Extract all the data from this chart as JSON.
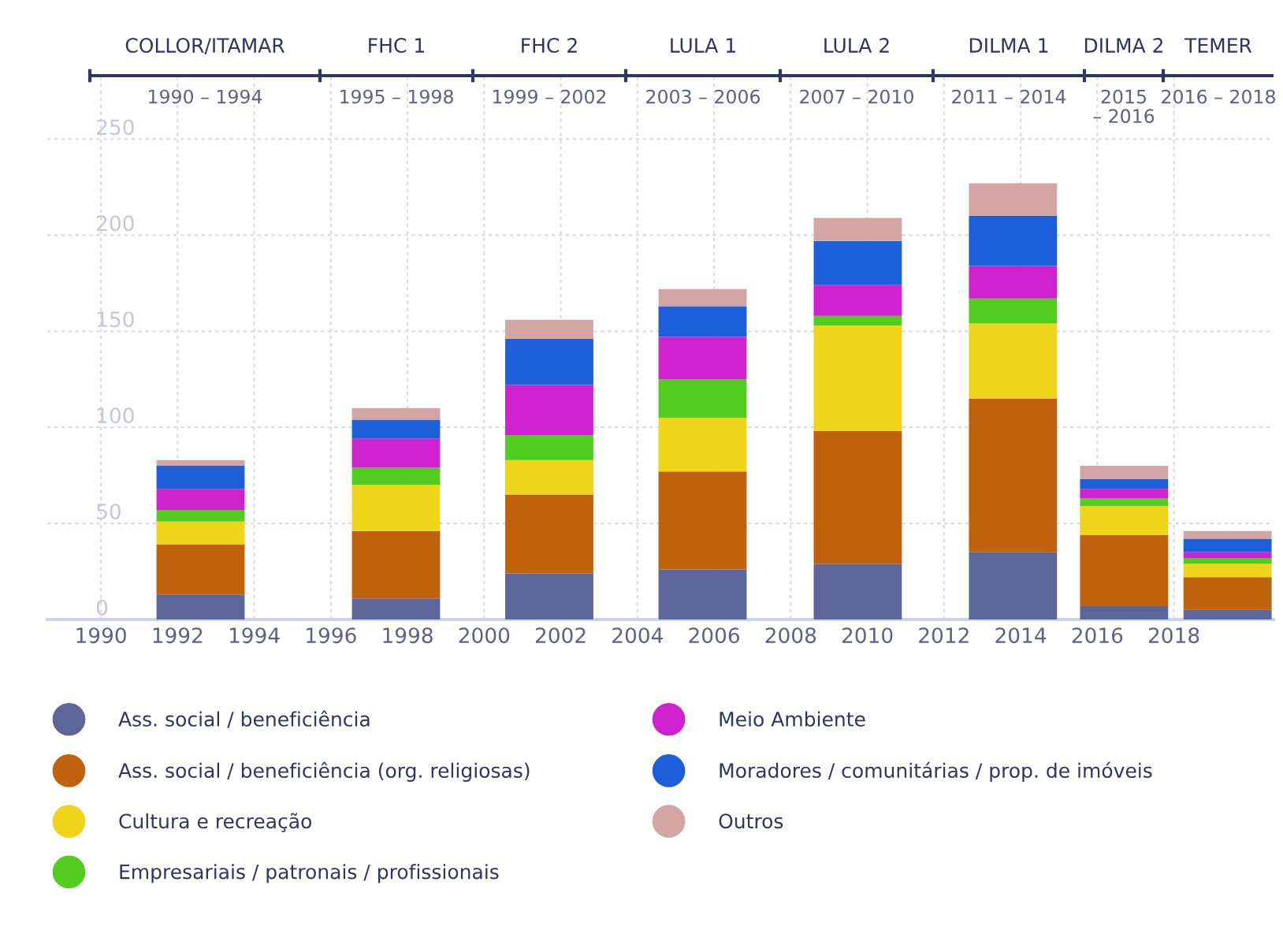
{
  "chart_data": {
    "type": "bar",
    "stacked": true,
    "x": [
      1992.6,
      1997.7,
      2001.7,
      2005.7,
      2009.75,
      2013.8,
      2016.7,
      2019.4
    ],
    "series": [
      {
        "name": "Ass. social / beneficiência",
        "color": "#5c6698",
        "values": [
          13,
          11,
          24,
          26,
          29,
          35,
          7,
          5
        ]
      },
      {
        "name": "Ass. social / beneficiência (org. religiosas)",
        "color": "#c0620c",
        "values": [
          26,
          35,
          41,
          51,
          69,
          80,
          37,
          17
        ]
      },
      {
        "name": "Cultura e recreação",
        "color": "#eed51a",
        "values": [
          12,
          24,
          18,
          28,
          55,
          39,
          15,
          7
        ]
      },
      {
        "name": "Empresariais / patronais / profissionais",
        "color": "#52cc1e",
        "values": [
          6,
          9,
          13,
          20,
          5,
          13,
          4,
          3
        ]
      },
      {
        "name": "Meio Ambiente",
        "color": "#cf22cf",
        "values": [
          11,
          15,
          26,
          22,
          16,
          17,
          5,
          3
        ]
      },
      {
        "name": "Moradores / comunitárias / prop. de imóveis",
        "color": "#1c5fd8",
        "values": [
          12,
          10,
          24,
          16,
          23,
          26,
          5,
          7
        ]
      },
      {
        "name": "Outros",
        "color": "#d4a6a3",
        "values": [
          3,
          6,
          10,
          9,
          12,
          17,
          7,
          4
        ]
      }
    ],
    "xlim": [
      1988.6,
      2020.6
    ],
    "ylim": [
      0,
      283
    ],
    "xticks": [
      1990,
      1992,
      1994,
      1996,
      1998,
      2000,
      2002,
      2004,
      2006,
      2008,
      2010,
      2012,
      2014,
      2016,
      2018
    ],
    "yticks": [
      0,
      50,
      100,
      150,
      200,
      250
    ],
    "annotations": [
      "COLLOR/ITAMAR",
      "1990 – 1994",
      "FHC 1",
      "1995 – 1998",
      "FHC 2",
      "1999 – 2002",
      "LULA 1",
      "2003 – 2006",
      "LULA 2",
      "2007 – 2010",
      "DILMA 1",
      "2011 – 2014",
      "DILMA 2",
      "2015\n– 2016",
      "TEMER",
      "2016 – 2018"
    ],
    "grid": true,
    "legend": "bottom"
  }
}
